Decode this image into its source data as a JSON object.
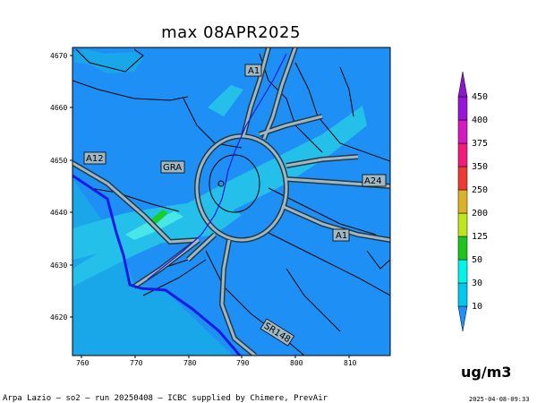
{
  "title": "max 08APR2025",
  "colors": {
    "background_sea": "#1aa7ea",
    "background_land": "#1e90f5",
    "plume_band": "#24c0ea",
    "high_band": "#49e6e9",
    "peak_band": "#18cf2a",
    "road_fill": "#9fb8c4",
    "road_edge": "#243a46",
    "coastline": "#1a1ae6",
    "contour": "#000000"
  },
  "map": {
    "y_axis_ticks": [
      "4670",
      "4660",
      "4650",
      "4640",
      "4630",
      "4620"
    ],
    "x_axis_ticks": [
      "760",
      "770",
      "780",
      "790",
      "800",
      "810"
    ],
    "road_labels": [
      "A1",
      "A12",
      "GRA",
      "A24",
      "A1",
      "SR148"
    ]
  },
  "colorbar": {
    "levels": [
      "450",
      "400",
      "375",
      "350",
      "250",
      "200",
      "125",
      "50",
      "30",
      "10"
    ],
    "colors": [
      "#1e90ff",
      "#00c8f0",
      "#00f5e8",
      "#1cc61a",
      "#bde61f",
      "#dcb12a",
      "#ee3a36",
      "#f21a7a",
      "#d41ac3",
      "#9715d6",
      "#8a16d0"
    ],
    "unit": "ug/m3"
  },
  "footer": "Arpa Lazio — so2 — run 20250408 — ICBC supplied by Chimere, PrevAir",
  "timestamp": "2025-04-08-09:33"
}
